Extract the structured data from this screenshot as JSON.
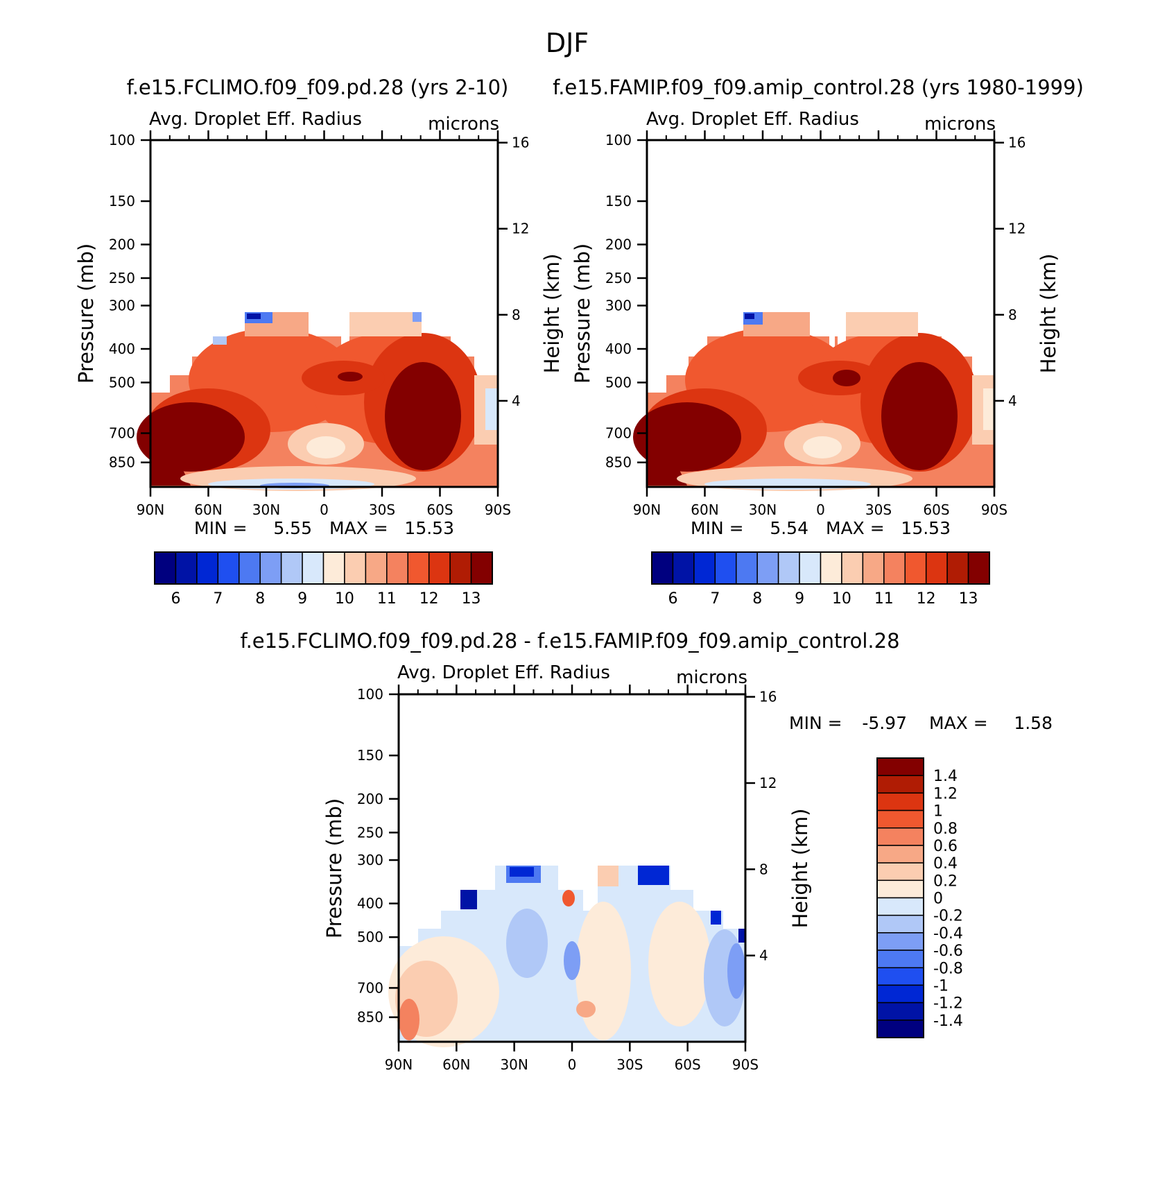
{
  "season_title": "DJF",
  "colors": {
    "abs_scale": [
      "#00007f",
      "#0013a6",
      "#0027d4",
      "#1f4ff0",
      "#4d79f2",
      "#7d9ef5",
      "#b0c8f7",
      "#d8e8fb",
      "#fdebd9",
      "#fbcdb1",
      "#f7a886",
      "#f4825f",
      "#f0582f",
      "#dc3511",
      "#b01c04",
      "#830000"
    ],
    "diff_scale": [
      "#00007f",
      "#0013a6",
      "#0027d4",
      "#1f4ff0",
      "#4d79f2",
      "#7d9ef5",
      "#b0c8f7",
      "#d8e8fb",
      "#fdebd9",
      "#fbcdb1",
      "#f7a886",
      "#f4825f",
      "#f0582f",
      "#dc3511",
      "#b01c04",
      "#830000"
    ]
  },
  "chart_data": [
    {
      "type": "heatmap",
      "title": "f.e15.FCLIMO.f09_f09.pd.28 (yrs 2-10)",
      "left_label": "Avg. Droplet Eff. Radius",
      "units": "microns",
      "ylabel": "Pressure (mb)",
      "y2label": "Height (km)",
      "x_ticks": [
        "90N",
        "60N",
        "30N",
        "0",
        "30S",
        "60S",
        "90S"
      ],
      "y_ticks": [
        100,
        150,
        200,
        250,
        300,
        400,
        500,
        700,
        850
      ],
      "y2_ticks": [
        16,
        12,
        8,
        4
      ],
      "ylim": [
        100,
        1000
      ],
      "min_label": "MIN =",
      "min": "5.55",
      "max_label": "MAX =",
      "max": "15.53",
      "colorbar": [
        "6",
        "7",
        "8",
        "9",
        "10",
        "11",
        "12",
        "13"
      ],
      "levels": [
        5.5,
        6,
        6.5,
        7,
        7.5,
        8,
        8.5,
        9,
        9.5,
        10,
        10.5,
        11,
        11.5,
        12,
        12.5,
        13
      ]
    },
    {
      "type": "heatmap",
      "title": "f.e15.FAMIP.f09_f09.amip_control.28 (yrs 1980-1999)",
      "left_label": "Avg. Droplet Eff. Radius",
      "units": "microns",
      "ylabel": "Pressure (mb)",
      "y2label": "Height (km)",
      "x_ticks": [
        "90N",
        "60N",
        "30N",
        "0",
        "30S",
        "60S",
        "90S"
      ],
      "y_ticks": [
        100,
        150,
        200,
        250,
        300,
        400,
        500,
        700,
        850
      ],
      "y2_ticks": [
        16,
        12,
        8,
        4
      ],
      "ylim": [
        100,
        1000
      ],
      "min_label": "MIN =",
      "min": "5.54",
      "max_label": "MAX =",
      "max": "15.53",
      "colorbar": [
        "6",
        "7",
        "8",
        "9",
        "10",
        "11",
        "12",
        "13"
      ],
      "levels": [
        5.5,
        6,
        6.5,
        7,
        7.5,
        8,
        8.5,
        9,
        9.5,
        10,
        10.5,
        11,
        11.5,
        12,
        12.5,
        13
      ]
    },
    {
      "type": "heatmap",
      "title": "f.e15.FCLIMO.f09_f09.pd.28 - f.e15.FAMIP.f09_f09.amip_control.28",
      "left_label": "Avg. Droplet Eff. Radius",
      "units": "microns",
      "ylabel": "Pressure (mb)",
      "y2label": "Height (km)",
      "x_ticks": [
        "90N",
        "60N",
        "30N",
        "0",
        "30S",
        "60S",
        "90S"
      ],
      "y_ticks": [
        100,
        150,
        200,
        250,
        300,
        400,
        500,
        700,
        850
      ],
      "y2_ticks": [
        16,
        12,
        8,
        4
      ],
      "ylim": [
        100,
        1000
      ],
      "min_label": "MIN =",
      "min": "-5.97",
      "max_label": "MAX =",
      "max": "1.58",
      "colorbar": [
        "1.4",
        "1.2",
        "1",
        "0.8",
        "0.6",
        "0.4",
        "0.2",
        "0",
        "-0.2",
        "-0.4",
        "-0.6",
        "-0.8",
        "-1",
        "-1.2",
        "-1.4"
      ]
    }
  ]
}
